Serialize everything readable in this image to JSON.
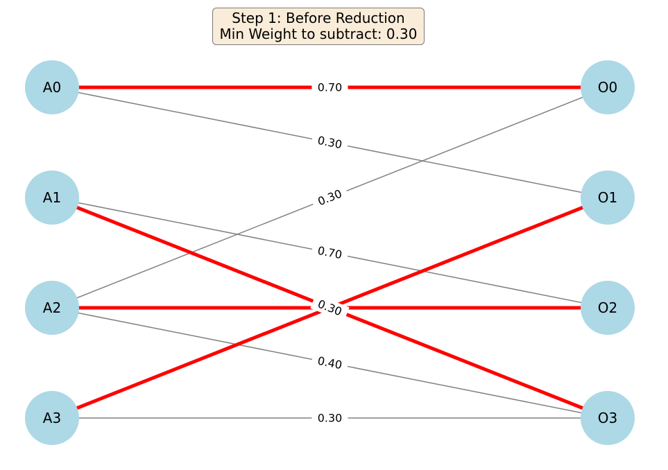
{
  "title": {
    "line1": "Step 1: Before Reduction",
    "line2": "Min Weight to subtract: 0.30"
  },
  "colors": {
    "node_fill": "#add8e6",
    "highlight_edge": "#ff0000",
    "normal_edge": "#808080",
    "title_bg": "#f9ecd8"
  },
  "nodes": {
    "left": [
      "A0",
      "A1",
      "A2",
      "A3"
    ],
    "right": [
      "O0",
      "O1",
      "O2",
      "O3"
    ]
  },
  "edges": [
    {
      "from": "A0",
      "to": "O0",
      "weight": "0.70",
      "highlight": true
    },
    {
      "from": "A0",
      "to": "O1",
      "weight": "0.30",
      "highlight": false
    },
    {
      "from": "A1",
      "to": "O2",
      "weight": "0.70",
      "highlight": false
    },
    {
      "from": "A1",
      "to": "O3",
      "weight": "0.30",
      "highlight": true
    },
    {
      "from": "A2",
      "to": "O0",
      "weight": "0.30",
      "highlight": false
    },
    {
      "from": "A2",
      "to": "O2",
      "weight": "0.30",
      "highlight": true
    },
    {
      "from": "A2",
      "to": "O3",
      "weight": "0.40",
      "highlight": false
    },
    {
      "from": "A3",
      "to": "O1",
      "weight": "0.30",
      "highlight": true
    },
    {
      "from": "A3",
      "to": "O3",
      "weight": "0.30",
      "highlight": false
    }
  ]
}
